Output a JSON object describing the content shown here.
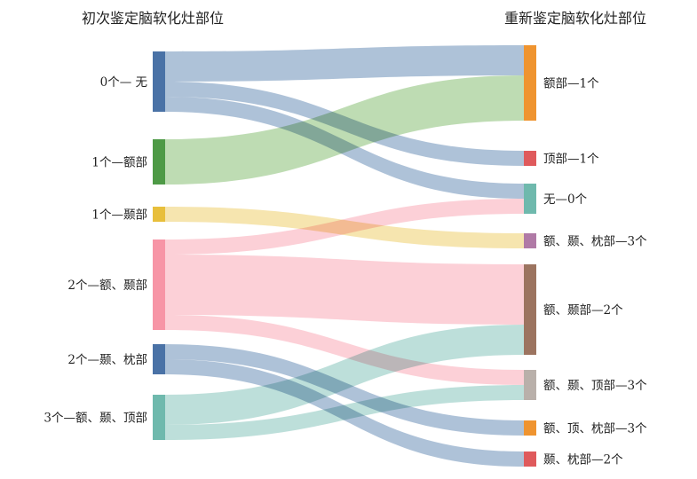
{
  "titles": {
    "left": "初次鉴定脑软化灶部位",
    "right": "重新鉴定脑软化灶部位"
  },
  "left_nodes": [
    {
      "id": "L0",
      "label": "0个— 无",
      "color": "#4a72a6"
    },
    {
      "id": "L1",
      "label": "1个—额部",
      "color": "#4e9a46"
    },
    {
      "id": "L2",
      "label": "1个—颞部",
      "color": "#e8bf3c"
    },
    {
      "id": "L3",
      "label": "2个—额、颞部",
      "color": "#f795a6"
    },
    {
      "id": "L4",
      "label": "2个—颞、枕部",
      "color": "#4a72a6"
    },
    {
      "id": "L5",
      "label": "3个—额、颞、顶部",
      "color": "#6fb9ad"
    }
  ],
  "right_nodes": [
    {
      "id": "R0",
      "label": "额部—1个",
      "color": "#ef9430"
    },
    {
      "id": "R1",
      "label": "顶部—1个",
      "color": "#df5a5c"
    },
    {
      "id": "R2",
      "label": "无—0个",
      "color": "#6fb9ad"
    },
    {
      "id": "R3",
      "label": "额、颞、枕部—3个",
      "color": "#b07aa6"
    },
    {
      "id": "R4",
      "label": "额、颞部—2个",
      "color": "#9c7460"
    },
    {
      "id": "R5",
      "label": "额、颞、顶部—3个",
      "color": "#b9b0aa"
    },
    {
      "id": "R6",
      "label": "额、顶、枕部—3个",
      "color": "#ef9430"
    },
    {
      "id": "R7",
      "label": "颞、枕部—2个",
      "color": "#df5a5c"
    }
  ],
  "flows": [
    {
      "from": "L0",
      "to": "R0",
      "value": 2.0,
      "color": "#a5bbd4"
    },
    {
      "from": "L0",
      "to": "R1",
      "value": 1.0,
      "color": "#a5bbd4"
    },
    {
      "from": "L0",
      "to": "R2",
      "value": 1.0,
      "color": "#a5bbd4"
    },
    {
      "from": "L1",
      "to": "R0",
      "value": 3.0,
      "color": "#b7d8ab"
    },
    {
      "from": "L2",
      "to": "R3",
      "value": 1.0,
      "color": "#f5e2a6"
    },
    {
      "from": "L3",
      "to": "R2",
      "value": 1.0,
      "color": "#fccbd3"
    },
    {
      "from": "L3",
      "to": "R4",
      "value": 4.0,
      "color": "#fccbd3"
    },
    {
      "from": "L3",
      "to": "R5",
      "value": 1.0,
      "color": "#fccbd3"
    },
    {
      "from": "L4",
      "to": "R6",
      "value": 1.0,
      "color": "#a5bbd4"
    },
    {
      "from": "L4",
      "to": "R7",
      "value": 1.0,
      "color": "#a5bbd4"
    },
    {
      "from": "L5",
      "to": "R4",
      "value": 2.0,
      "color": "#b6dcd6"
    },
    {
      "from": "L5",
      "to": "R5",
      "value": 1.0,
      "color": "#b6dcd6"
    }
  ]
}
